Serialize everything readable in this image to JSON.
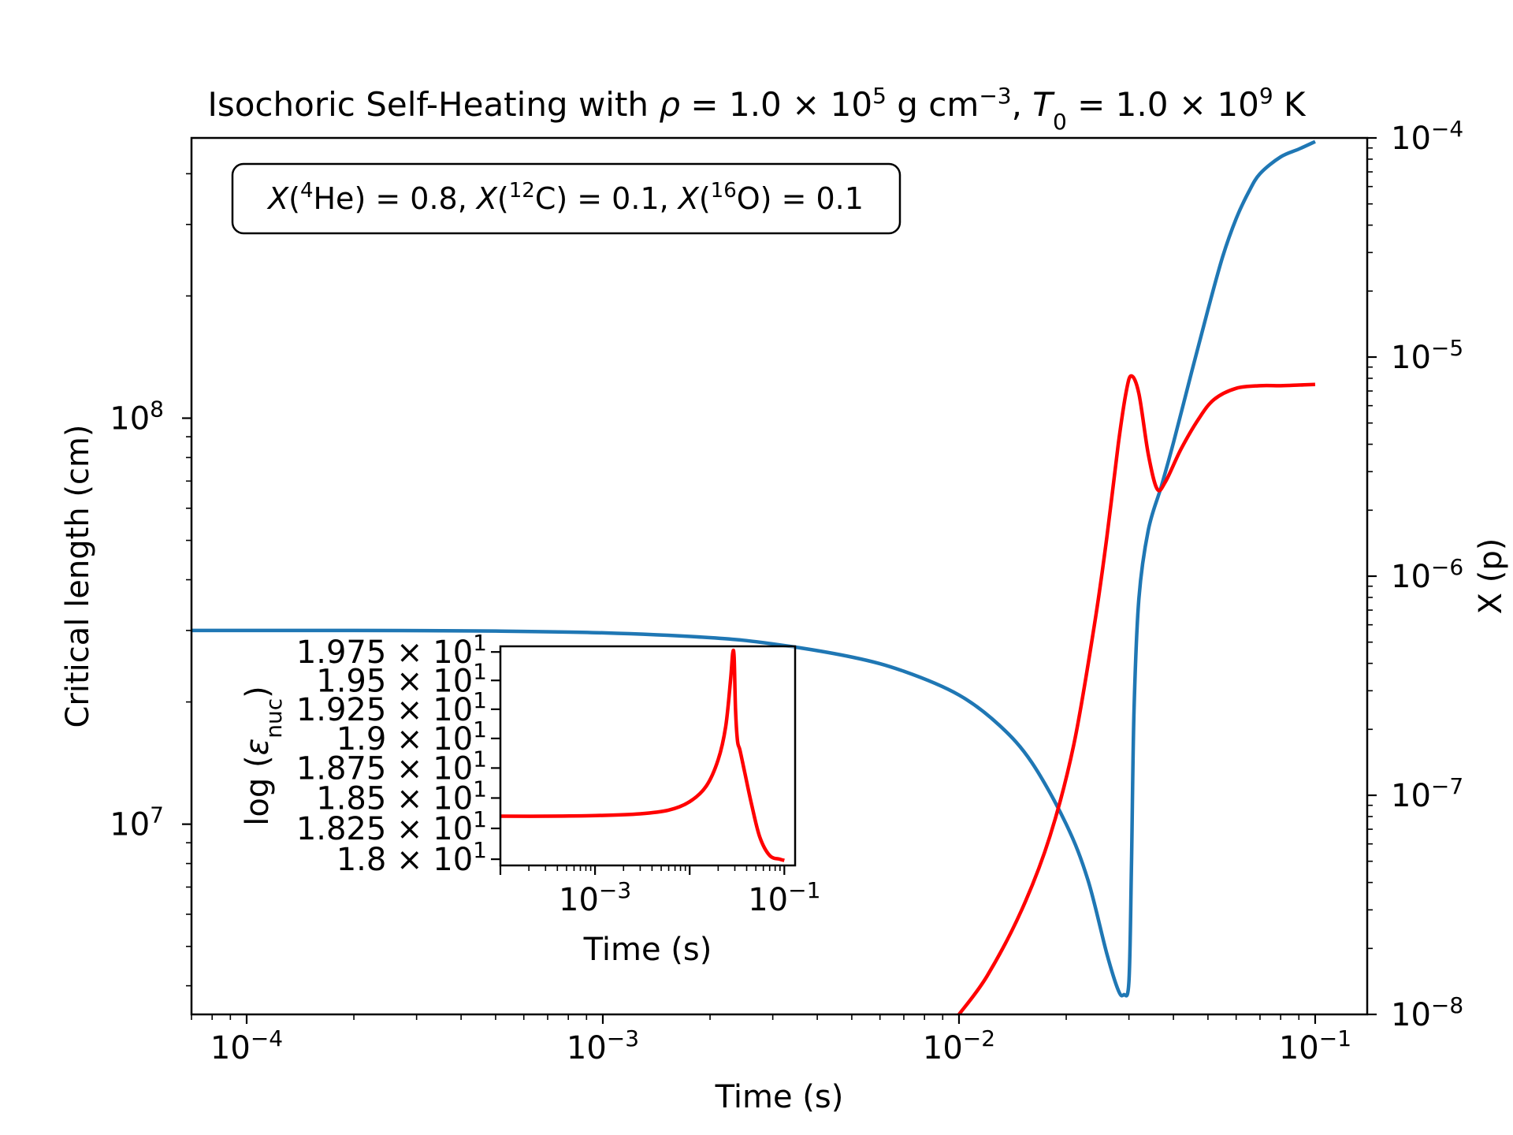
{
  "chart_data": [
    {
      "type": "line",
      "title_parts": [
        "Isochoric Self-Heating with ",
        "ρ",
        " = 1.0 × 10",
        "5",
        " g cm",
        "−3",
        ", ",
        "T",
        "0",
        " = 1.0 × 10",
        "9",
        "  K"
      ],
      "xlabel": "Time (s)",
      "ylabel": "Critical length (cm)",
      "y2label": "X (p)",
      "xscale": "log",
      "yscale": "log",
      "y2scale": "log",
      "xlim": [
        7e-05,
        0.14
      ],
      "ylim": [
        3400000.0,
        490000000.0
      ],
      "y2lim": [
        1e-08,
        0.0001
      ],
      "x_ticks": [
        {
          "value": 0.0001,
          "base": "10",
          "exp": "−4"
        },
        {
          "value": 0.001,
          "base": "10",
          "exp": "−3"
        },
        {
          "value": 0.01,
          "base": "10",
          "exp": "−2"
        },
        {
          "value": 0.1,
          "base": "10",
          "exp": "−1"
        }
      ],
      "y_ticks": [
        {
          "value": 10000000.0,
          "base": "10",
          "exp": "7"
        },
        {
          "value": 100000000.0,
          "base": "10",
          "exp": "8"
        }
      ],
      "y2_ticks": [
        {
          "value": 1e-08,
          "base": "10",
          "exp": "−8"
        },
        {
          "value": 1e-07,
          "base": "10",
          "exp": "−7"
        },
        {
          "value": 1e-06,
          "base": "10",
          "exp": "−6"
        },
        {
          "value": 1e-05,
          "base": "10",
          "exp": "−5"
        },
        {
          "value": 0.0001,
          "base": "10",
          "exp": "−4"
        }
      ],
      "annotation_parts": [
        "X",
        "(",
        "4",
        "He) = 0.8, ",
        "X",
        "(",
        "12",
        "C) = 0.1, ",
        "X",
        "(",
        "16",
        "O) = 0.1"
      ],
      "series": [
        {
          "axis": "left",
          "color": "#1f77b4",
          "x": [
            7e-05,
            0.0001,
            0.0002,
            0.0005,
            0.001,
            0.002,
            0.003,
            0.005,
            0.007,
            0.01,
            0.013,
            0.016,
            0.02,
            0.023,
            0.026,
            0.028,
            0.029,
            0.03,
            0.0305,
            0.031,
            0.032,
            0.034,
            0.037,
            0.04,
            0.045,
            0.05,
            0.055,
            0.06,
            0.065,
            0.07,
            0.08,
            0.09,
            0.1
          ],
          "y": [
            30000000.0,
            30000000.0,
            30000000.0,
            29900000.0,
            29600000.0,
            28800000.0,
            27800000.0,
            25800000.0,
            23800000.0,
            20800000.0,
            17500000.0,
            14200000.0,
            10000000.0,
            7300000.0,
            4800000.0,
            3900000.0,
            3800000.0,
            4100000.0,
            8000000.0,
            19000000.0,
            36000000.0,
            53000000.0,
            68000000.0,
            87000000.0,
            130000000.0,
            185000000.0,
            250000000.0,
            310000000.0,
            360000000.0,
            400000000.0,
            440000000.0,
            460000000.0,
            480000000.0
          ]
        },
        {
          "axis": "right",
          "color": "#ff0000",
          "x": [
            0.01,
            0.012,
            0.015,
            0.018,
            0.021,
            0.024,
            0.026,
            0.028,
            0.0295,
            0.0305,
            0.032,
            0.034,
            0.036,
            0.038,
            0.042,
            0.047,
            0.052,
            0.06,
            0.07,
            0.08,
            0.09,
            0.1
          ],
          "y": [
            1e-08,
            1.5e-08,
            3e-08,
            6.5e-08,
            1.7e-07,
            6e-07,
            1.5e-06,
            4e-06,
            7e-06,
            8.2e-06,
            6.8e-06,
            3.6e-06,
            2.5e-06,
            2.7e-06,
            3.8e-06,
            5.2e-06,
            6.4e-06,
            7.2e-06,
            7.4e-06,
            7.4e-06,
            7.45e-06,
            7.5e-06
          ]
        }
      ]
    },
    {
      "type": "line",
      "ylabel_parts": [
        "log (",
        "ε",
        "nuc",
        ")"
      ],
      "xlabel": "Time (s)",
      "xscale": "log",
      "yscale": "log",
      "xlim": [
        0.0001,
        0.13
      ],
      "ylim": [
        17.95,
        19.8
      ],
      "x_ticks": [
        {
          "value": 0.001,
          "base": "10",
          "exp": "−3"
        },
        {
          "value": 0.1,
          "base": "10",
          "exp": "−1"
        }
      ],
      "y_ticks": [
        {
          "value": 18.0,
          "mant": "1.8 × 10",
          "exp": "1"
        },
        {
          "value": 18.25,
          "mant": "1.825 × 10",
          "exp": "1"
        },
        {
          "value": 18.5,
          "mant": "1.85 × 10",
          "exp": "1"
        },
        {
          "value": 18.75,
          "mant": "1.875 × 10",
          "exp": "1"
        },
        {
          "value": 19.0,
          "mant": "1.9 × 10",
          "exp": "1"
        },
        {
          "value": 19.25,
          "mant": "1.925 × 10",
          "exp": "1"
        },
        {
          "value": 19.5,
          "mant": "1.95 × 10",
          "exp": "1"
        },
        {
          "value": 19.75,
          "mant": "1.975 × 10",
          "exp": "1"
        }
      ],
      "series": [
        {
          "color": "#ff0000",
          "x": [
            0.0001,
            0.0003,
            0.001,
            0.003,
            0.006,
            0.01,
            0.015,
            0.02,
            0.024,
            0.027,
            0.0285,
            0.0295,
            0.0305,
            0.032,
            0.034,
            0.038,
            0.045,
            0.055,
            0.07,
            0.09,
            0.1
          ],
          "y": [
            18.35,
            18.35,
            18.355,
            18.37,
            18.4,
            18.47,
            18.6,
            18.82,
            19.1,
            19.5,
            19.74,
            19.7,
            19.25,
            18.98,
            18.9,
            18.72,
            18.45,
            18.18,
            18.03,
            18.0,
            17.99
          ]
        }
      ]
    }
  ]
}
